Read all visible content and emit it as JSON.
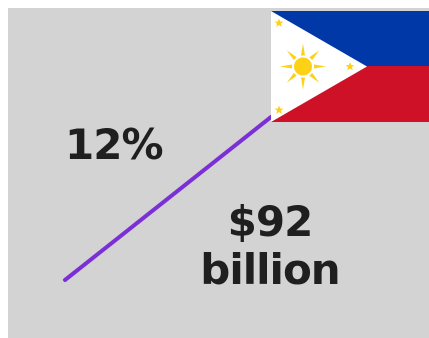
{
  "growth_percent": "12%",
  "amount": {
    "value": "$92",
    "unit": "billion"
  },
  "flag": {
    "icon": "philippines-flag-icon",
    "colors": {
      "blue": "#0038a8",
      "red": "#ce1126",
      "white": "#ffffff",
      "gold": "#fcd116"
    }
  },
  "trend_line_color": "#7b2fd6",
  "background_color": "#d3d3d3"
}
